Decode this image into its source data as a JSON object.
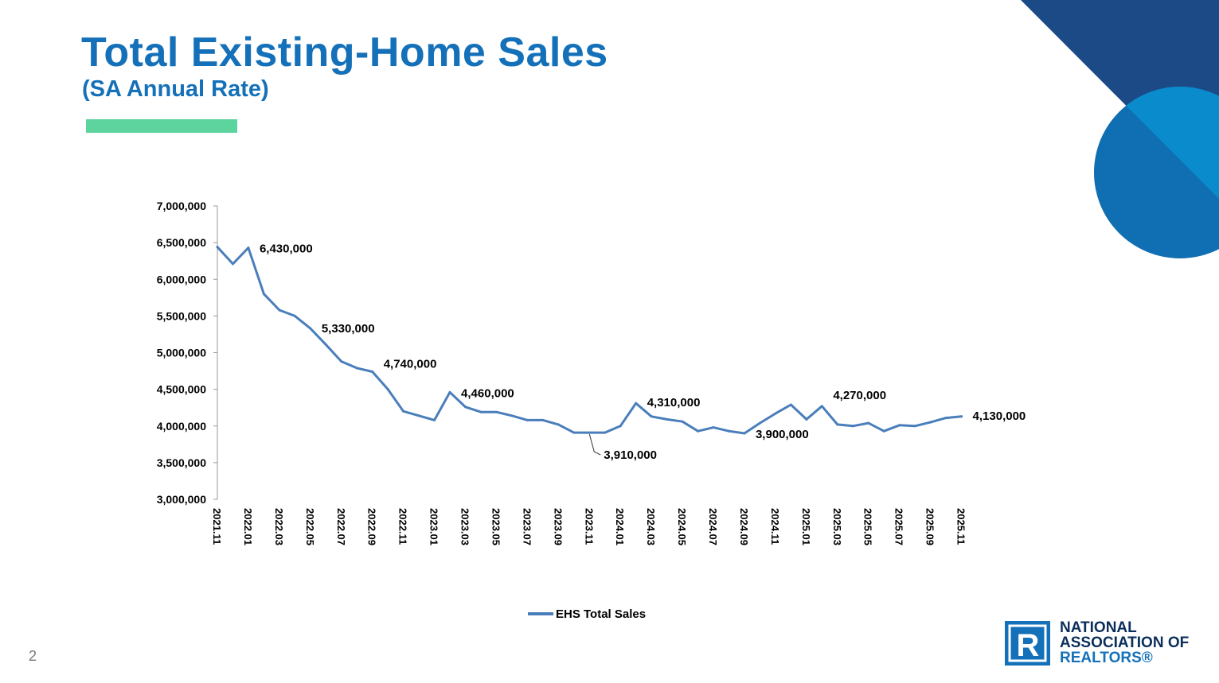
{
  "title": "Total Existing-Home Sales",
  "subtitle": "(SA Annual Rate)",
  "page_number": "2",
  "logo": {
    "line1": "NATIONAL",
    "line2": "ASSOCIATION OF",
    "line3": "REALTORS®",
    "mark": "R"
  },
  "colors": {
    "title": "#1470b8",
    "accent_bar": "#5dd39e",
    "series_line": "#4a7ebb",
    "deco_dark": "#1c4a87",
    "deco_circle": "#0f6fb2",
    "deco_light": "#0a8ccc"
  },
  "chart_data": {
    "type": "line",
    "title": "",
    "xlabel": "",
    "ylabel": "",
    "ylim": [
      3000000,
      7000000
    ],
    "y_ticks": [
      "3,000,000",
      "3,500,000",
      "4,000,000",
      "4,500,000",
      "5,000,000",
      "5,500,000",
      "6,000,000",
      "6,500,000",
      "7,000,000"
    ],
    "x_tick_labels": [
      "2021.11",
      "2022.01",
      "2022.03",
      "2022.05",
      "2022.07",
      "2022.09",
      "2022.11",
      "2023.01",
      "2023.03",
      "2023.05",
      "2023.07",
      "2023.09",
      "2023.11",
      "2024.01",
      "2024.03",
      "2024.05",
      "2024.07",
      "2024.09",
      "2024.11",
      "2025.01",
      "2025.03",
      "2025.05",
      "2025.07",
      "2025.09",
      "2025.11"
    ],
    "legend": "EHS Total Sales",
    "legend_position": "bottom",
    "series": [
      {
        "name": "EHS Total Sales",
        "categories": [
          "2021.11",
          "2021.12",
          "2022.01",
          "2022.02",
          "2022.03",
          "2022.04",
          "2022.05",
          "2022.06",
          "2022.07",
          "2022.08",
          "2022.09",
          "2022.10",
          "2022.11",
          "2022.12",
          "2023.01",
          "2023.02",
          "2023.03",
          "2023.04",
          "2023.05",
          "2023.06",
          "2023.07",
          "2023.08",
          "2023.09",
          "2023.10",
          "2023.11",
          "2023.12",
          "2024.01",
          "2024.02",
          "2024.03",
          "2024.04",
          "2024.05",
          "2024.06",
          "2024.07",
          "2024.08",
          "2024.09",
          "2024.10",
          "2024.11",
          "2024.12",
          "2025.01",
          "2025.02",
          "2025.03",
          "2025.04",
          "2025.05",
          "2025.06",
          "2025.07",
          "2025.08",
          "2025.09",
          "2025.10",
          "2025.11"
        ],
        "values": [
          6440000,
          6210000,
          6430000,
          5800000,
          5580000,
          5500000,
          5330000,
          5110000,
          4880000,
          4790000,
          4740000,
          4500000,
          4200000,
          4140000,
          4080000,
          4460000,
          4260000,
          4190000,
          4190000,
          4140000,
          4080000,
          4080000,
          4020000,
          3910000,
          3910000,
          3910000,
          4000000,
          4310000,
          4130000,
          4090000,
          4060000,
          3930000,
          3980000,
          3930000,
          3900000,
          4040000,
          4170000,
          4290000,
          4090000,
          4270000,
          4020000,
          4000000,
          4040000,
          3930000,
          4010000,
          4000000,
          4050000,
          4110000,
          4130000
        ]
      }
    ],
    "annotations": [
      {
        "category": "2022.01",
        "label": "6,430,000"
      },
      {
        "category": "2022.05",
        "label": "5,330,000"
      },
      {
        "category": "2022.09",
        "label": "4,740,000"
      },
      {
        "category": "2023.02",
        "label": "4,460,000"
      },
      {
        "category": "2023.11",
        "label": "3,910,000"
      },
      {
        "category": "2024.02",
        "label": "4,310,000"
      },
      {
        "category": "2024.09",
        "label": "3,900,000"
      },
      {
        "category": "2025.02",
        "label": "4,270,000"
      },
      {
        "category": "2025.11",
        "label": "4,130,000"
      }
    ]
  }
}
